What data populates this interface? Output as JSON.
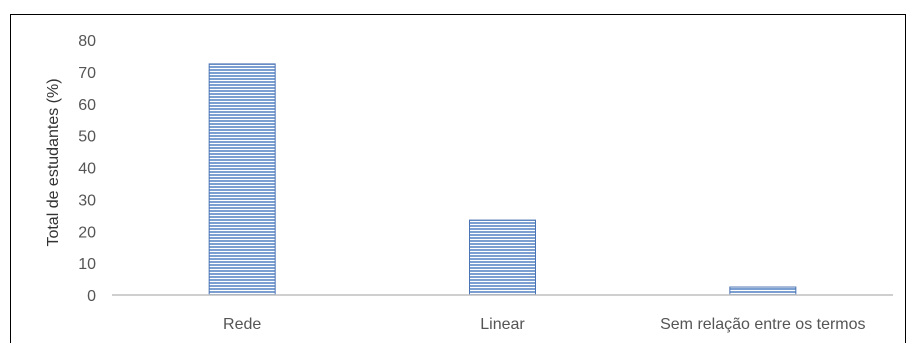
{
  "chart_data": {
    "type": "bar",
    "categories": [
      "Rede",
      "Linear",
      "Sem relação entre os termos"
    ],
    "values": [
      72.5,
      23.5,
      2.5
    ],
    "title": "",
    "xlabel": "",
    "ylabel": "Total de estudantes (%)",
    "ylim": [
      0,
      80
    ],
    "yticks": [
      0,
      10,
      20,
      30,
      40,
      50,
      60,
      70,
      80
    ],
    "grid": false,
    "legend": "none",
    "bar_color": "#7c9fd2",
    "bar_edge_color": "#4a74b4",
    "axis_color": "#bfbfbf"
  }
}
